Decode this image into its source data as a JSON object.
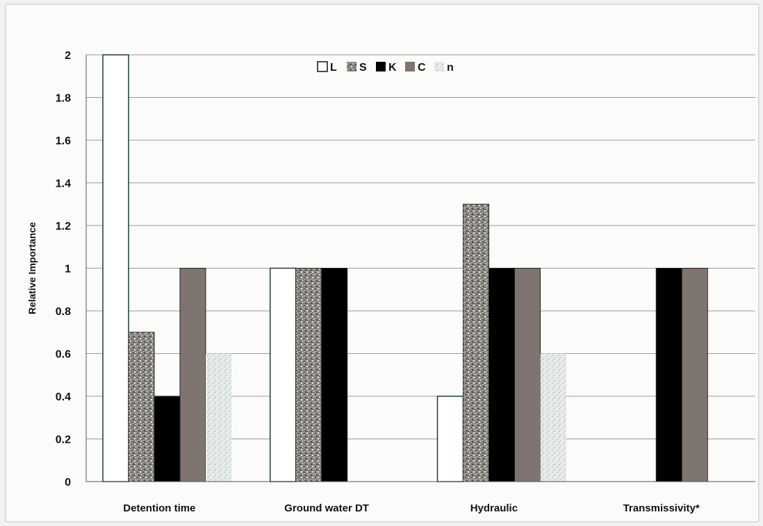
{
  "chart_data": {
    "type": "bar",
    "title": "",
    "xlabel": "",
    "ylabel": "Relative Importance",
    "ylim": [
      0,
      2
    ],
    "yticks": [
      "0",
      "0.2",
      "0.4",
      "0.6",
      "0.8",
      "1",
      "1.2",
      "1.4",
      "1.6",
      "1.8",
      "2"
    ],
    "grid": true,
    "legend_position": "top-center",
    "categories": [
      "Detention time",
      "Ground water DT",
      "Hydraulic",
      "Transmissivity*"
    ],
    "series": [
      {
        "name": "L",
        "values": [
          2,
          1,
          0.4,
          0
        ],
        "color": "#ffffff",
        "pattern": "outline"
      },
      {
        "name": "S",
        "values": [
          0.7,
          1,
          1.3,
          0
        ],
        "color": "#8a8680",
        "pattern": "speckle"
      },
      {
        "name": "K",
        "values": [
          0.4,
          1,
          1,
          1
        ],
        "color": "#000000",
        "pattern": "solid"
      },
      {
        "name": "C",
        "values": [
          1,
          0,
          1,
          1
        ],
        "color": "#7e7470",
        "pattern": "solid"
      },
      {
        "name": "n",
        "values": [
          0.6,
          0,
          0.6,
          0
        ],
        "color": "#c9d4d0",
        "pattern": "light-speckle"
      }
    ]
  }
}
